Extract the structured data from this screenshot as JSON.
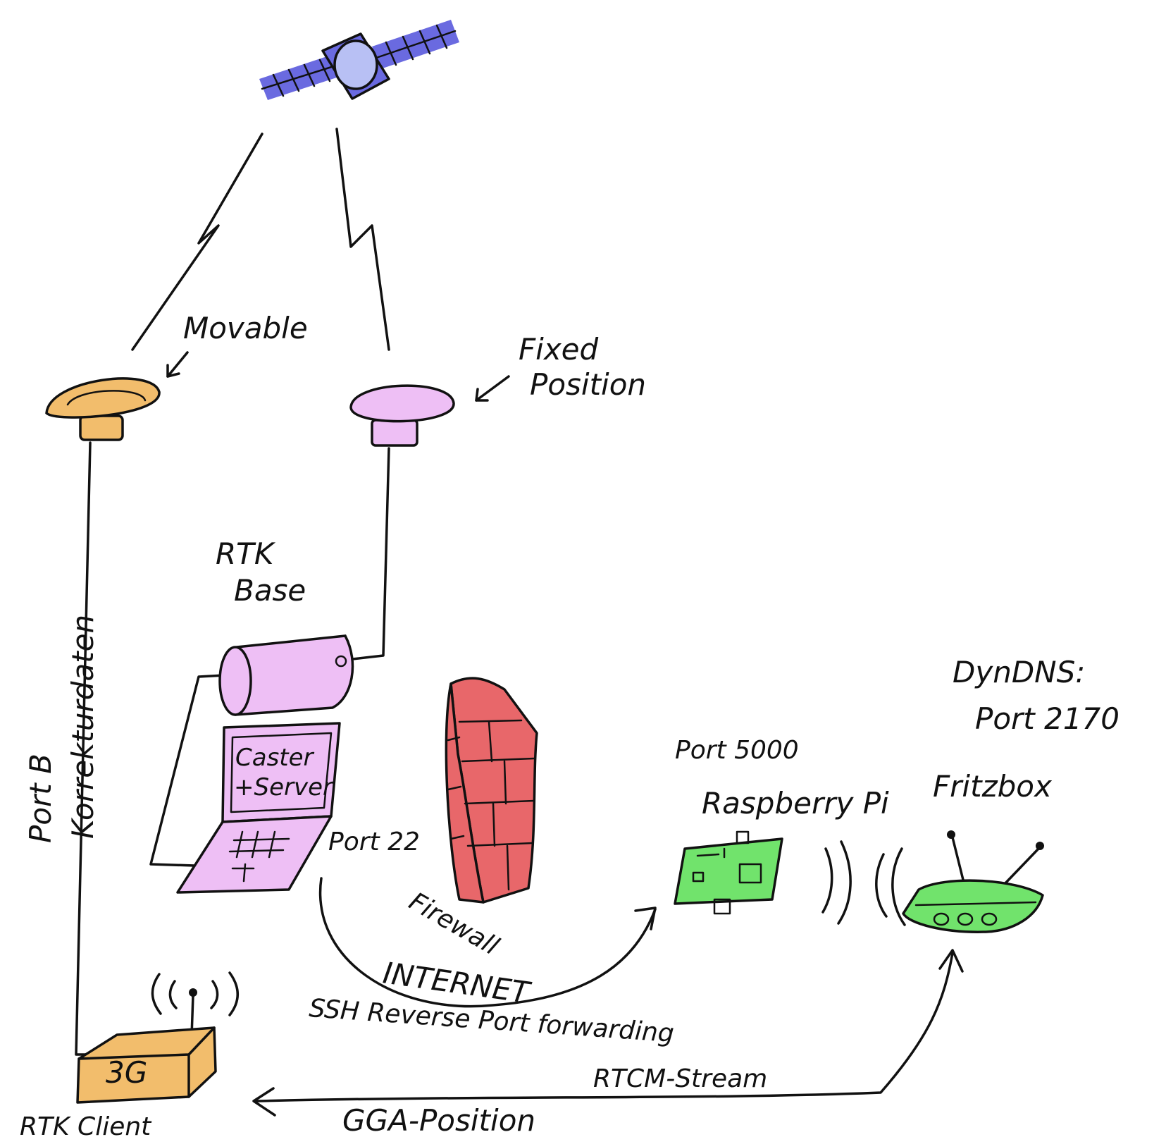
{
  "colors": {
    "satellite_body": "#b8c0f4",
    "satellite_panel": "#6a6ae0",
    "movable_antenna": "#f2bd6c",
    "fixed_antenna": "#eebff5",
    "rtk_base": "#eebff5",
    "firewall": "#e8676a",
    "raspberry_pi": "#71e36c",
    "fritzbox": "#71e36c",
    "client_3g": "#f2bd6c"
  },
  "labels": {
    "movable": "Movable",
    "fixed_line1": "Fixed",
    "fixed_line2": "Position",
    "rtk_base_line1": "RTK",
    "rtk_base_line2": "Base",
    "caster_line1": "Caster",
    "caster_line2": "+Server",
    "port22": "Port 22",
    "firewall": "Firewall",
    "internet": "INTERNET",
    "ssh": "SSH Reverse Port forwarding",
    "port5000": "Port 5000",
    "raspberry": "Raspberry Pi",
    "dyndns_line1": "DynDNS:",
    "dyndns_line2": "Port 2170",
    "fritzbox": "Fritzbox",
    "port_b": "Port B",
    "korrekturdaten": "Korrekturdaten",
    "client_3g": "3G",
    "rtk_client": "RTK Client",
    "rtcm_stream": "RTCM-Stream",
    "gga_position": "GGA-Position"
  }
}
